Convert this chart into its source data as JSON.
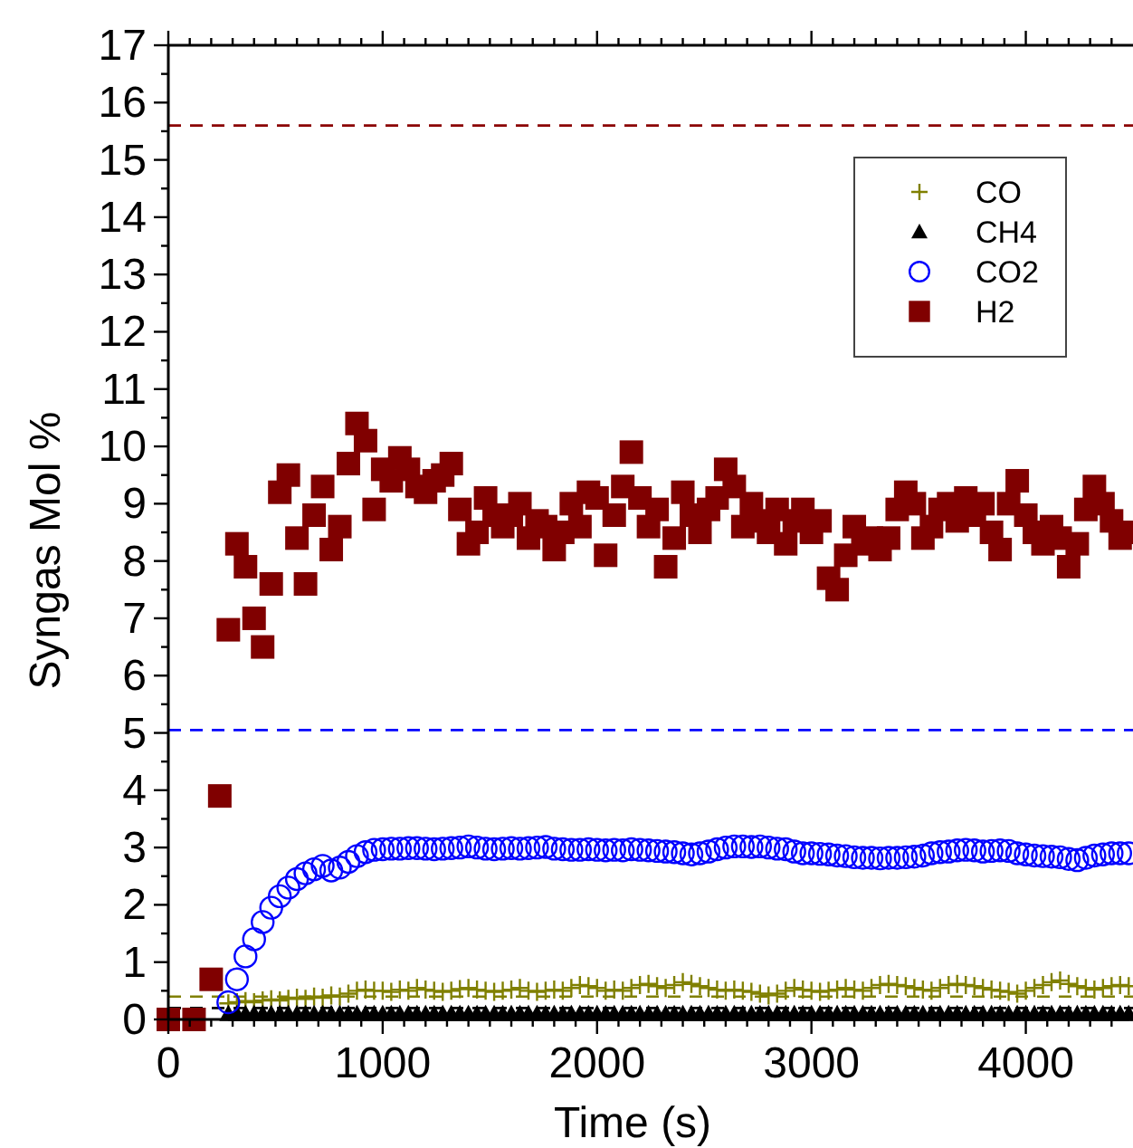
{
  "chart_data": {
    "type": "scatter",
    "xlabel": "Time (s)",
    "ylabel": "Syngas Mol %",
    "xlim": [
      0,
      4500
    ],
    "ylim": [
      0,
      17
    ],
    "xticks": [
      0,
      {
        "value": 100,
        "label": null
      },
      {
        "value": 200,
        "label": null
      },
      {
        "value": 300,
        "label": null
      },
      {
        "value": 400,
        "label": null
      },
      {
        "value": 500,
        "label": null
      },
      {
        "value": 600,
        "label": null
      },
      {
        "value": 700,
        "label": null
      },
      {
        "value": 800,
        "label": null
      },
      {
        "value": 900,
        "label": null
      },
      1000,
      {
        "value": 1100,
        "label": null
      },
      {
        "value": 1200,
        "label": null
      },
      {
        "value": 1300,
        "label": null
      },
      {
        "value": 1400,
        "label": null
      },
      {
        "value": 1500,
        "label": null
      },
      {
        "value": 1600,
        "label": null
      },
      {
        "value": 1700,
        "label": null
      },
      {
        "value": 1800,
        "label": null
      },
      {
        "value": 1900,
        "label": null
      },
      2000,
      {
        "value": 2100,
        "label": null
      },
      {
        "value": 2200,
        "label": null
      },
      {
        "value": 2300,
        "label": null
      },
      {
        "value": 2400,
        "label": null
      },
      {
        "value": 2500,
        "label": null
      },
      {
        "value": 2600,
        "label": null
      },
      {
        "value": 2700,
        "label": null
      },
      {
        "value": 2800,
        "label": null
      },
      {
        "value": 2900,
        "label": null
      },
      3000,
      {
        "value": 3100,
        "label": null
      },
      {
        "value": 3200,
        "label": null
      },
      {
        "value": 3300,
        "label": null
      },
      {
        "value": 3400,
        "label": null
      },
      {
        "value": 3500,
        "label": null
      },
      {
        "value": 3600,
        "label": null
      },
      {
        "value": 3700,
        "label": null
      },
      {
        "value": 3800,
        "label": null
      },
      {
        "value": 3900,
        "label": null
      },
      4000,
      {
        "value": 4100,
        "label": null
      },
      {
        "value": 4200,
        "label": null
      },
      {
        "value": 4300,
        "label": null
      },
      {
        "value": 4400,
        "label": null
      }
    ],
    "yticks": [
      0,
      {
        "value": 0.5,
        "label": null
      },
      1,
      {
        "value": 1.5,
        "label": null
      },
      2,
      {
        "value": 2.5,
        "label": null
      },
      3,
      {
        "value": 3.5,
        "label": null
      },
      4,
      {
        "value": 4.5,
        "label": null
      },
      5,
      {
        "value": 5.5,
        "label": null
      },
      6,
      {
        "value": 6.5,
        "label": null
      },
      7,
      {
        "value": 7.5,
        "label": null
      },
      8,
      {
        "value": 8.5,
        "label": null
      },
      9,
      {
        "value": 9.5,
        "label": null
      },
      10,
      {
        "value": 10.5,
        "label": null
      },
      11,
      {
        "value": 11.5,
        "label": null
      },
      12,
      {
        "value": 12.5,
        "label": null
      },
      13,
      {
        "value": 13.5,
        "label": null
      },
      14,
      {
        "value": 14.5,
        "label": null
      },
      15,
      {
        "value": 15.5,
        "label": null
      },
      16,
      {
        "value": 16.5,
        "label": null
      },
      17
    ],
    "grid": false,
    "legend": "top right",
    "x": [
      280,
      320,
      360,
      400,
      440,
      480,
      520,
      560,
      600,
      640,
      680,
      720,
      760,
      800,
      840,
      880,
      920,
      960,
      1000,
      1040,
      1080,
      1120,
      1160,
      1200,
      1240,
      1280,
      1320,
      1360,
      1400,
      1440,
      1480,
      1520,
      1560,
      1600,
      1640,
      1680,
      1720,
      1760,
      1800,
      1840,
      1880,
      1920,
      1960,
      2000,
      2040,
      2080,
      2120,
      2160,
      2200,
      2240,
      2280,
      2320,
      2360,
      2400,
      2440,
      2480,
      2520,
      2560,
      2600,
      2640,
      2680,
      2720,
      2760,
      2800,
      2840,
      2880,
      2920,
      2960,
      3000,
      3040,
      3080,
      3120,
      3160,
      3200,
      3240,
      3280,
      3320,
      3360,
      3400,
      3440,
      3480,
      3520,
      3560,
      3600,
      3640,
      3680,
      3720,
      3760,
      3800,
      3840,
      3880,
      3920,
      3960,
      4000,
      4040,
      4080,
      4120,
      4160,
      4200,
      4240,
      4280,
      4320,
      4360,
      4400,
      4440,
      4480
    ],
    "series": [
      {
        "name": "CO",
        "color": "#808000",
        "marker": "cross",
        "values": [
          0.28,
          0.3,
          0.32,
          0.3,
          0.33,
          0.35,
          0.33,
          0.36,
          0.38,
          0.36,
          0.4,
          0.38,
          0.42,
          0.4,
          0.45,
          0.5,
          0.52,
          0.5,
          0.5,
          0.48,
          0.52,
          0.5,
          0.55,
          0.52,
          0.5,
          0.48,
          0.5,
          0.53,
          0.55,
          0.52,
          0.5,
          0.48,
          0.5,
          0.52,
          0.55,
          0.5,
          0.48,
          0.5,
          0.52,
          0.5,
          0.55,
          0.6,
          0.58,
          0.55,
          0.5,
          0.52,
          0.5,
          0.55,
          0.6,
          0.62,
          0.58,
          0.55,
          0.6,
          0.65,
          0.62,
          0.58,
          0.55,
          0.52,
          0.5,
          0.52,
          0.5,
          0.48,
          0.45,
          0.42,
          0.45,
          0.5,
          0.55,
          0.52,
          0.5,
          0.48,
          0.5,
          0.52,
          0.55,
          0.52,
          0.5,
          0.55,
          0.6,
          0.62,
          0.6,
          0.58,
          0.55,
          0.52,
          0.5,
          0.55,
          0.6,
          0.62,
          0.6,
          0.58,
          0.55,
          0.52,
          0.5,
          0.48,
          0.45,
          0.5,
          0.55,
          0.6,
          0.65,
          0.68,
          0.62,
          0.58,
          0.55,
          0.52,
          0.55,
          0.58,
          0.6,
          0.58
        ]
      },
      {
        "name": "CH4",
        "color": "#000000",
        "marker": "triangle",
        "values": [
          0.1,
          0.1,
          0.1,
          0.1,
          0.1,
          0.1,
          0.1,
          0.1,
          0.1,
          0.1,
          0.1,
          0.1,
          0.1,
          0.1,
          0.1,
          0.1,
          0.1,
          0.1,
          0.1,
          0.1,
          0.1,
          0.1,
          0.1,
          0.1,
          0.1,
          0.1,
          0.1,
          0.1,
          0.1,
          0.1,
          0.1,
          0.1,
          0.1,
          0.1,
          0.1,
          0.1,
          0.1,
          0.1,
          0.1,
          0.1,
          0.1,
          0.1,
          0.1,
          0.1,
          0.1,
          0.1,
          0.1,
          0.1,
          0.1,
          0.1,
          0.1,
          0.1,
          0.1,
          0.1,
          0.1,
          0.1,
          0.1,
          0.1,
          0.1,
          0.1,
          0.1,
          0.1,
          0.1,
          0.1,
          0.1,
          0.1,
          0.1,
          0.1,
          0.1,
          0.1,
          0.1,
          0.1,
          0.1,
          0.1,
          0.1,
          0.1,
          0.1,
          0.1,
          0.1,
          0.1,
          0.1,
          0.1,
          0.1,
          0.1,
          0.1,
          0.1,
          0.1,
          0.1,
          0.1,
          0.1,
          0.1,
          0.1,
          0.1,
          0.1,
          0.1,
          0.1,
          0.1,
          0.1,
          0.1,
          0.1,
          0.1,
          0.1,
          0.1,
          0.1,
          0.1,
          0.1
        ]
      },
      {
        "name": "CO2",
        "color": "#0000ff",
        "marker": "circle",
        "values": [
          0.3,
          0.7,
          1.1,
          1.4,
          1.7,
          1.95,
          2.15,
          2.3,
          2.45,
          2.55,
          2.62,
          2.68,
          2.6,
          2.65,
          2.75,
          2.85,
          2.92,
          2.96,
          2.97,
          2.98,
          2.98,
          2.99,
          2.99,
          2.98,
          2.97,
          2.98,
          2.99,
          3.0,
          3.02,
          3.0,
          2.98,
          2.97,
          2.98,
          2.99,
          2.98,
          2.99,
          3.0,
          3.01,
          2.98,
          2.97,
          2.96,
          2.96,
          2.97,
          2.96,
          2.95,
          2.96,
          2.95,
          2.97,
          2.96,
          2.95,
          2.94,
          2.93,
          2.92,
          2.9,
          2.88,
          2.9,
          2.93,
          2.97,
          3.0,
          3.02,
          3.02,
          3.01,
          3.02,
          3.0,
          2.98,
          2.97,
          2.93,
          2.9,
          2.9,
          2.89,
          2.88,
          2.86,
          2.85,
          2.83,
          2.82,
          2.82,
          2.81,
          2.82,
          2.82,
          2.83,
          2.84,
          2.86,
          2.9,
          2.92,
          2.93,
          2.95,
          2.96,
          2.95,
          2.93,
          2.94,
          2.95,
          2.94,
          2.9,
          2.88,
          2.86,
          2.85,
          2.84,
          2.83,
          2.8,
          2.78,
          2.82,
          2.86,
          2.88,
          2.9,
          2.9,
          2.9
        ]
      },
      {
        "name": "H2",
        "color": "#800000",
        "marker": "square",
        "x": [
          0,
          120,
          200,
          240,
          280,
          320,
          360,
          400,
          440,
          480,
          520,
          560,
          600,
          640,
          680,
          720,
          760,
          800,
          840,
          880,
          920,
          960,
          1000,
          1040,
          1080,
          1120,
          1160,
          1200,
          1240,
          1280,
          1320,
          1360,
          1400,
          1440,
          1480,
          1520,
          1560,
          1600,
          1640,
          1680,
          1720,
          1760,
          1800,
          1840,
          1880,
          1920,
          1960,
          2000,
          2040,
          2080,
          2120,
          2160,
          2200,
          2240,
          2280,
          2320,
          2360,
          2400,
          2440,
          2480,
          2520,
          2560,
          2600,
          2640,
          2680,
          2720,
          2760,
          2800,
          2840,
          2880,
          2920,
          2960,
          3000,
          3040,
          3080,
          3120,
          3160,
          3200,
          3240,
          3280,
          3320,
          3360,
          3400,
          3440,
          3480,
          3520,
          3560,
          3600,
          3640,
          3680,
          3720,
          3760,
          3800,
          3840,
          3880,
          3920,
          3960,
          4000,
          4040,
          4080,
          4120,
          4160,
          4200,
          4240,
          4280,
          4320,
          4360,
          4400,
          4440,
          4480
        ],
        "values": [
          0,
          0,
          0.7,
          3.9,
          6.8,
          8.3,
          7.9,
          7.0,
          6.5,
          7.6,
          9.2,
          9.5,
          8.4,
          7.6,
          8.8,
          9.3,
          8.2,
          8.6,
          9.7,
          10.4,
          10.1,
          8.9,
          9.6,
          9.4,
          9.8,
          9.6,
          9.3,
          9.2,
          9.4,
          9.5,
          9.7,
          8.9,
          8.3,
          8.5,
          9.1,
          8.8,
          8.6,
          8.8,
          9.0,
          8.4,
          8.7,
          8.6,
          8.2,
          8.5,
          9.0,
          8.6,
          9.2,
          9.1,
          8.1,
          8.8,
          9.3,
          9.9,
          9.1,
          8.6,
          8.9,
          7.9,
          8.4,
          9.2,
          8.8,
          8.5,
          8.9,
          9.1,
          9.6,
          9.3,
          8.6,
          9.0,
          8.7,
          8.5,
          8.9,
          8.3,
          8.7,
          8.9,
          8.5,
          8.7,
          7.7,
          7.5,
          8.1,
          8.6,
          8.3,
          8.4,
          8.2,
          8.4,
          8.9,
          9.2,
          9.0,
          8.4,
          8.6,
          8.9,
          9.0,
          8.7,
          9.1,
          8.8,
          9.0,
          8.5,
          8.2,
          9.0,
          9.4,
          8.8,
          8.5,
          8.3,
          8.6,
          8.4,
          7.9,
          8.3,
          8.9,
          9.3,
          9.0,
          8.7,
          8.4,
          8.5
        ]
      }
    ],
    "ref_lines": [
      {
        "axis": "y",
        "value": 15.6,
        "color": "#8b0000",
        "line_style": "dashed"
      },
      {
        "axis": "y",
        "value": 5.05,
        "color": "#0000ff",
        "line_style": "dashed"
      },
      {
        "axis": "y",
        "value": 0.4,
        "color": "#808000",
        "line_style": "dashed"
      },
      {
        "axis": "y",
        "value": 0.2,
        "color": "#000000",
        "line_style": "dashed"
      }
    ]
  }
}
